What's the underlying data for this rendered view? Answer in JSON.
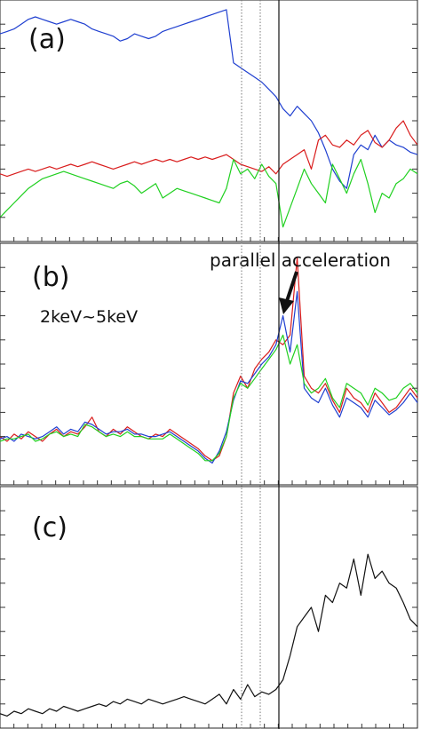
{
  "chart_data": [
    {
      "type": "line",
      "panel_label": "(a)",
      "x": [
        0,
        8,
        16,
        24,
        32,
        40,
        48,
        56,
        64,
        72,
        80,
        88,
        96,
        104,
        112,
        120,
        128,
        136,
        144,
        152,
        160,
        168,
        176,
        184,
        192,
        200,
        208,
        216,
        224,
        232,
        240,
        248,
        256,
        264,
        272,
        280,
        288,
        296,
        304,
        312,
        320,
        328,
        336,
        344,
        352,
        360,
        368,
        376,
        384,
        392,
        400,
        408,
        416,
        424,
        432,
        440,
        448,
        456,
        464,
        472
      ],
      "series": [
        {
          "color": "#1f3fd0",
          "values": [
            0.86,
            0.87,
            0.88,
            0.9,
            0.92,
            0.93,
            0.92,
            0.91,
            0.9,
            0.91,
            0.92,
            0.91,
            0.9,
            0.88,
            0.87,
            0.86,
            0.85,
            0.83,
            0.84,
            0.86,
            0.85,
            0.84,
            0.85,
            0.87,
            0.88,
            0.89,
            0.9,
            0.91,
            0.92,
            0.93,
            0.94,
            0.95,
            0.96,
            0.74,
            0.72,
            0.7,
            0.68,
            0.66,
            0.63,
            0.6,
            0.55,
            0.52,
            0.56,
            0.53,
            0.5,
            0.45,
            0.38,
            0.3,
            0.25,
            0.22,
            0.36,
            0.4,
            0.38,
            0.44,
            0.39,
            0.42,
            0.4,
            0.39,
            0.37,
            0.36
          ]
        },
        {
          "color": "#d91c1c",
          "values": [
            0.28,
            0.27,
            0.28,
            0.29,
            0.3,
            0.29,
            0.3,
            0.31,
            0.3,
            0.31,
            0.32,
            0.31,
            0.32,
            0.33,
            0.32,
            0.31,
            0.3,
            0.31,
            0.32,
            0.33,
            0.32,
            0.33,
            0.34,
            0.33,
            0.34,
            0.33,
            0.34,
            0.35,
            0.34,
            0.35,
            0.34,
            0.35,
            0.36,
            0.34,
            0.32,
            0.31,
            0.3,
            0.29,
            0.31,
            0.28,
            0.32,
            0.34,
            0.36,
            0.38,
            0.3,
            0.42,
            0.44,
            0.4,
            0.39,
            0.42,
            0.4,
            0.44,
            0.46,
            0.41,
            0.39,
            0.42,
            0.47,
            0.5,
            0.44,
            0.4
          ]
        },
        {
          "color": "#20d020",
          "values": [
            0.1,
            0.13,
            0.16,
            0.19,
            0.22,
            0.24,
            0.26,
            0.27,
            0.28,
            0.29,
            0.28,
            0.27,
            0.26,
            0.25,
            0.24,
            0.23,
            0.22,
            0.24,
            0.25,
            0.23,
            0.2,
            0.22,
            0.24,
            0.18,
            0.2,
            0.22,
            0.21,
            0.2,
            0.19,
            0.18,
            0.17,
            0.16,
            0.22,
            0.34,
            0.28,
            0.3,
            0.26,
            0.32,
            0.27,
            0.24,
            0.06,
            0.14,
            0.22,
            0.3,
            0.24,
            0.2,
            0.16,
            0.32,
            0.26,
            0.2,
            0.28,
            0.34,
            0.24,
            0.12,
            0.2,
            0.18,
            0.24,
            0.26,
            0.3,
            0.28
          ]
        }
      ]
    },
    {
      "type": "line",
      "panel_label": "(b)",
      "annotation_text": "2keV~5keV",
      "arrow_text": "parallel acceleration",
      "x": [
        0,
        8,
        16,
        24,
        32,
        40,
        48,
        56,
        64,
        72,
        80,
        88,
        96,
        104,
        112,
        120,
        128,
        136,
        144,
        152,
        160,
        168,
        176,
        184,
        192,
        200,
        208,
        216,
        224,
        232,
        240,
        248,
        256,
        264,
        272,
        280,
        288,
        296,
        304,
        312,
        320,
        328,
        336,
        344,
        352,
        360,
        368,
        376,
        384,
        392,
        400,
        408,
        416,
        424,
        432,
        440,
        448,
        456,
        464,
        472
      ],
      "series": [
        {
          "color": "#d91c1c",
          "values": [
            0.2,
            0.18,
            0.21,
            0.19,
            0.22,
            0.2,
            0.18,
            0.21,
            0.23,
            0.2,
            0.22,
            0.21,
            0.24,
            0.28,
            0.22,
            0.2,
            0.23,
            0.21,
            0.24,
            0.22,
            0.2,
            0.19,
            0.21,
            0.2,
            0.23,
            0.21,
            0.19,
            0.17,
            0.15,
            0.12,
            0.1,
            0.12,
            0.2,
            0.38,
            0.45,
            0.4,
            0.48,
            0.52,
            0.55,
            0.6,
            0.58,
            0.62,
            0.94,
            0.45,
            0.4,
            0.38,
            0.42,
            0.35,
            0.3,
            0.4,
            0.36,
            0.34,
            0.3,
            0.38,
            0.34,
            0.3,
            0.32,
            0.36,
            0.4,
            0.36
          ]
        },
        {
          "color": "#1f3fd0",
          "values": [
            0.19,
            0.2,
            0.18,
            0.21,
            0.2,
            0.19,
            0.2,
            0.22,
            0.24,
            0.21,
            0.23,
            0.22,
            0.26,
            0.25,
            0.23,
            0.21,
            0.22,
            0.22,
            0.23,
            0.21,
            0.21,
            0.2,
            0.2,
            0.21,
            0.22,
            0.2,
            0.18,
            0.16,
            0.14,
            0.11,
            0.09,
            0.14,
            0.22,
            0.35,
            0.43,
            0.42,
            0.46,
            0.5,
            0.53,
            0.58,
            0.7,
            0.55,
            0.8,
            0.4,
            0.36,
            0.34,
            0.4,
            0.33,
            0.28,
            0.36,
            0.34,
            0.32,
            0.28,
            0.35,
            0.32,
            0.29,
            0.31,
            0.34,
            0.38,
            0.34
          ]
        },
        {
          "color": "#20d020",
          "values": [
            0.18,
            0.19,
            0.19,
            0.2,
            0.21,
            0.18,
            0.19,
            0.21,
            0.22,
            0.2,
            0.21,
            0.2,
            0.25,
            0.24,
            0.22,
            0.2,
            0.21,
            0.2,
            0.22,
            0.2,
            0.2,
            0.19,
            0.19,
            0.19,
            0.21,
            0.19,
            0.17,
            0.15,
            0.13,
            0.1,
            0.1,
            0.13,
            0.2,
            0.36,
            0.42,
            0.4,
            0.44,
            0.48,
            0.52,
            0.56,
            0.62,
            0.5,
            0.58,
            0.42,
            0.38,
            0.4,
            0.44,
            0.36,
            0.32,
            0.42,
            0.4,
            0.38,
            0.33,
            0.4,
            0.38,
            0.35,
            0.36,
            0.4,
            0.42,
            0.38
          ]
        }
      ]
    },
    {
      "type": "line",
      "panel_label": "(c)",
      "x": [
        0,
        8,
        16,
        24,
        32,
        40,
        48,
        56,
        64,
        72,
        80,
        88,
        96,
        104,
        112,
        120,
        128,
        136,
        144,
        152,
        160,
        168,
        176,
        184,
        192,
        200,
        208,
        216,
        224,
        232,
        240,
        248,
        256,
        264,
        272,
        280,
        288,
        296,
        304,
        312,
        320,
        328,
        336,
        344,
        352,
        360,
        368,
        376,
        384,
        392,
        400,
        408,
        416,
        424,
        432,
        440,
        448,
        456,
        464,
        472
      ],
      "series": [
        {
          "color": "#111111",
          "values": [
            0.06,
            0.05,
            0.07,
            0.06,
            0.08,
            0.07,
            0.06,
            0.08,
            0.07,
            0.09,
            0.08,
            0.07,
            0.08,
            0.09,
            0.1,
            0.09,
            0.11,
            0.1,
            0.12,
            0.11,
            0.1,
            0.12,
            0.11,
            0.1,
            0.11,
            0.12,
            0.13,
            0.12,
            0.11,
            0.1,
            0.12,
            0.14,
            0.1,
            0.16,
            0.12,
            0.18,
            0.13,
            0.15,
            0.14,
            0.16,
            0.2,
            0.3,
            0.42,
            0.46,
            0.5,
            0.4,
            0.55,
            0.52,
            0.6,
            0.58,
            0.7,
            0.55,
            0.72,
            0.62,
            0.65,
            0.6,
            0.58,
            0.52,
            0.45,
            0.42
          ]
        }
      ]
    }
  ]
}
